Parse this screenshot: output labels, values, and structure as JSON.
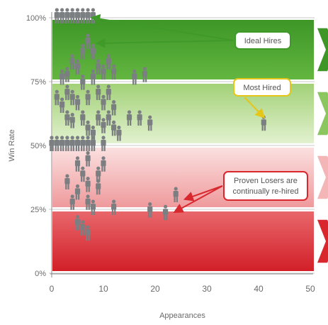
{
  "chart_data": {
    "type": "scatter",
    "title": "",
    "xlabel": "Appearances",
    "ylabel": "Win Rate",
    "xlim": [
      0,
      50
    ],
    "ylim": [
      0,
      100
    ],
    "x_ticks": [
      0,
      10,
      20,
      30,
      40,
      50
    ],
    "y_ticks": [
      {
        "value": 0,
        "label": "0%"
      },
      {
        "value": 25,
        "label": "25%"
      },
      {
        "value": 50,
        "label": "50%"
      },
      {
        "value": 75,
        "label": "75%"
      },
      {
        "value": 100,
        "label": "100%"
      }
    ],
    "grid": false,
    "marker": "person-icon",
    "bands": [
      {
        "from": 75,
        "to": 100,
        "color": "#46a02c"
      },
      {
        "from": 50,
        "to": 75,
        "color": "#a9d57c"
      },
      {
        "from": 25,
        "to": 50,
        "color": "#f2a9aa"
      },
      {
        "from": 0,
        "to": 25,
        "color": "#d9272e"
      }
    ],
    "points": [
      {
        "x": 1,
        "y": 100
      },
      {
        "x": 2,
        "y": 100
      },
      {
        "x": 3,
        "y": 100
      },
      {
        "x": 4,
        "y": 100
      },
      {
        "x": 5,
        "y": 100
      },
      {
        "x": 6,
        "y": 100
      },
      {
        "x": 7,
        "y": 100
      },
      {
        "x": 8,
        "y": 100
      },
      {
        "x": 7,
        "y": 90
      },
      {
        "x": 8,
        "y": 86
      },
      {
        "x": 6,
        "y": 86
      },
      {
        "x": 4,
        "y": 82
      },
      {
        "x": 5,
        "y": 80
      },
      {
        "x": 9,
        "y": 80
      },
      {
        "x": 11,
        "y": 82
      },
      {
        "x": 2,
        "y": 76
      },
      {
        "x": 3,
        "y": 77
      },
      {
        "x": 6,
        "y": 74
      },
      {
        "x": 8,
        "y": 76
      },
      {
        "x": 10,
        "y": 78
      },
      {
        "x": 12,
        "y": 78
      },
      {
        "x": 16,
        "y": 76
      },
      {
        "x": 18,
        "y": 77
      },
      {
        "x": 1,
        "y": 68
      },
      {
        "x": 3,
        "y": 70
      },
      {
        "x": 4,
        "y": 68
      },
      {
        "x": 7,
        "y": 68
      },
      {
        "x": 9,
        "y": 70
      },
      {
        "x": 11,
        "y": 70
      },
      {
        "x": 2,
        "y": 65
      },
      {
        "x": 5,
        "y": 66
      },
      {
        "x": 10,
        "y": 66
      },
      {
        "x": 12,
        "y": 64
      },
      {
        "x": 3,
        "y": 60
      },
      {
        "x": 4,
        "y": 59
      },
      {
        "x": 6,
        "y": 60
      },
      {
        "x": 9,
        "y": 60
      },
      {
        "x": 11,
        "y": 60
      },
      {
        "x": 7,
        "y": 56
      },
      {
        "x": 10,
        "y": 57
      },
      {
        "x": 12,
        "y": 56
      },
      {
        "x": 15,
        "y": 60
      },
      {
        "x": 17,
        "y": 60
      },
      {
        "x": 19,
        "y": 58
      },
      {
        "x": 13,
        "y": 54
      },
      {
        "x": 8,
        "y": 54
      },
      {
        "x": 41,
        "y": 58
      },
      {
        "x": 0,
        "y": 50
      },
      {
        "x": 1,
        "y": 50
      },
      {
        "x": 2,
        "y": 50
      },
      {
        "x": 3,
        "y": 50
      },
      {
        "x": 4,
        "y": 50
      },
      {
        "x": 5,
        "y": 50
      },
      {
        "x": 6,
        "y": 50
      },
      {
        "x": 7,
        "y": 50
      },
      {
        "x": 8,
        "y": 50
      },
      {
        "x": 10,
        "y": 50
      },
      {
        "x": 5,
        "y": 42
      },
      {
        "x": 7,
        "y": 44
      },
      {
        "x": 10,
        "y": 42
      },
      {
        "x": 6,
        "y": 38
      },
      {
        "x": 9,
        "y": 38
      },
      {
        "x": 3,
        "y": 35
      },
      {
        "x": 7,
        "y": 34
      },
      {
        "x": 9,
        "y": 33
      },
      {
        "x": 5,
        "y": 31
      },
      {
        "x": 24,
        "y": 30
      },
      {
        "x": 4,
        "y": 27
      },
      {
        "x": 7,
        "y": 27
      },
      {
        "x": 8,
        "y": 25
      },
      {
        "x": 12,
        "y": 25
      },
      {
        "x": 19,
        "y": 24
      },
      {
        "x": 22,
        "y": 23
      },
      {
        "x": 5,
        "y": 19
      },
      {
        "x": 6,
        "y": 17
      },
      {
        "x": 7,
        "y": 15
      }
    ],
    "annotations": [
      {
        "text": "Ideal Hires",
        "color": "#3f9a2a",
        "targets": [
          {
            "x": 7,
            "y": 100
          },
          {
            "x": 8,
            "y": 90
          }
        ]
      },
      {
        "text": "Most Hired",
        "color": "#e6c619",
        "targets": [
          {
            "x": 41,
            "y": 60
          }
        ]
      },
      {
        "text": "Proven Losers are continually re-hired",
        "color": "#d9272e",
        "targets": [
          {
            "x": 25,
            "y": 29
          },
          {
            "x": 23,
            "y": 24
          }
        ]
      }
    ]
  }
}
